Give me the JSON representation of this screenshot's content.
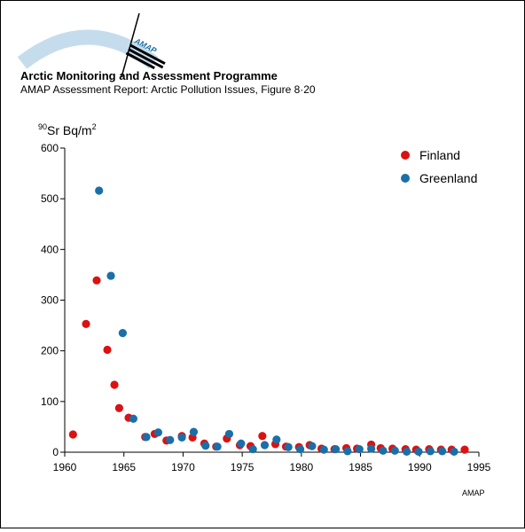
{
  "header": {
    "logo_text": "AMAP",
    "title": "Arctic Monitoring and Assessment Programme",
    "subtitle": "AMAP Assessment Report: Arctic Pollution Issues, Figure 8·20"
  },
  "footer": {
    "credit": "AMAP"
  },
  "colors": {
    "finland": "#dd1111",
    "greenland": "#1a6fa8",
    "logo_arc": "#c5dcec"
  },
  "chart_data": {
    "type": "scatter",
    "title": "",
    "ylabel_prefix": "90",
    "ylabel_main": "Sr Bq/m",
    "ylabel_sup": "2",
    "xlabel": "",
    "xlim": [
      1960,
      1995
    ],
    "ylim": [
      0,
      600
    ],
    "x_ticks": [
      "1960",
      "1965",
      "1970",
      "1975",
      "1980",
      "1985",
      "1990",
      "1995"
    ],
    "y_ticks": [
      "0",
      "100",
      "200",
      "300",
      "400",
      "500",
      "600"
    ],
    "legend_position": "top-right",
    "series": [
      {
        "name": "Finland",
        "color": "#dd1111",
        "points": [
          [
            1960.7,
            35
          ],
          [
            1961.8,
            253
          ],
          [
            1962.7,
            339
          ],
          [
            1963.6,
            202
          ],
          [
            1964.2,
            133
          ],
          [
            1964.6,
            87
          ],
          [
            1965.4,
            68
          ],
          [
            1966.8,
            30
          ],
          [
            1967.6,
            36
          ],
          [
            1968.6,
            23
          ],
          [
            1969.9,
            32
          ],
          [
            1970.8,
            29
          ],
          [
            1971.8,
            17
          ],
          [
            1972.8,
            11
          ],
          [
            1973.7,
            27
          ],
          [
            1974.8,
            14
          ],
          [
            1975.7,
            12
          ],
          [
            1976.7,
            32
          ],
          [
            1977.8,
            16
          ],
          [
            1978.7,
            11
          ],
          [
            1979.8,
            10
          ],
          [
            1980.7,
            14
          ],
          [
            1981.7,
            7
          ],
          [
            1982.8,
            6
          ],
          [
            1983.8,
            8
          ],
          [
            1984.7,
            7
          ],
          [
            1985.9,
            15
          ],
          [
            1986.7,
            8
          ],
          [
            1987.7,
            7
          ],
          [
            1988.8,
            6
          ],
          [
            1989.7,
            5
          ],
          [
            1990.8,
            6
          ],
          [
            1991.8,
            5
          ],
          [
            1992.7,
            5
          ],
          [
            1993.8,
            5
          ]
        ]
      },
      {
        "name": "Greenland",
        "color": "#1a6fa8",
        "points": [
          [
            1962.9,
            516
          ],
          [
            1963.9,
            348
          ],
          [
            1964.9,
            235
          ],
          [
            1965.8,
            66
          ],
          [
            1966.9,
            30
          ],
          [
            1967.9,
            39
          ],
          [
            1968.9,
            24
          ],
          [
            1969.9,
            29
          ],
          [
            1970.9,
            40
          ],
          [
            1971.9,
            13
          ],
          [
            1972.9,
            11
          ],
          [
            1973.9,
            36
          ],
          [
            1974.9,
            17
          ],
          [
            1975.9,
            6
          ],
          [
            1976.9,
            14
          ],
          [
            1977.9,
            25
          ],
          [
            1978.9,
            10
          ],
          [
            1979.9,
            6
          ],
          [
            1980.9,
            12
          ],
          [
            1981.9,
            5
          ],
          [
            1982.9,
            6
          ],
          [
            1983.9,
            2
          ],
          [
            1984.9,
            6
          ],
          [
            1985.9,
            7
          ],
          [
            1986.9,
            3
          ],
          [
            1987.9,
            3
          ],
          [
            1988.9,
            1
          ],
          [
            1989.9,
            1
          ],
          [
            1990.9,
            2
          ],
          [
            1991.9,
            2
          ],
          [
            1992.9,
            1
          ]
        ]
      }
    ]
  }
}
